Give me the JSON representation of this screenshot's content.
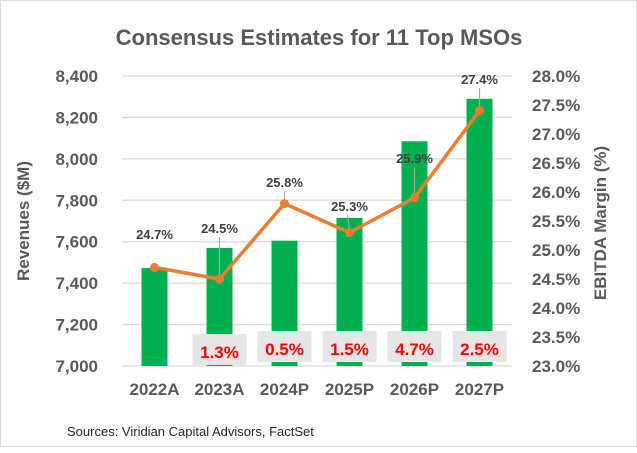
{
  "chart_data": {
    "type": "bar+line",
    "title": "Consensus Estimates for 11 Top MSOs",
    "categories": [
      "2022A",
      "2023A",
      "2024P",
      "2025P",
      "2026P",
      "2027P"
    ],
    "series": [
      {
        "name": "Revenues ($M)",
        "type": "bar",
        "axis": "left",
        "color": "#00B050",
        "values": [
          7473,
          7570,
          7605,
          7715,
          8085,
          8290
        ]
      },
      {
        "name": "EBITDA Margin (%)",
        "type": "line",
        "axis": "right",
        "color": "#ED7D31",
        "values": [
          24.7,
          24.5,
          25.8,
          25.3,
          25.9,
          27.4
        ],
        "labels": [
          "24.7%",
          "24.5%",
          "25.8%",
          "25.3%",
          "25.9%",
          "27.4%"
        ]
      }
    ],
    "growth_labels": [
      "",
      "1.3%",
      "0.5%",
      "1.5%",
      "4.7%",
      "2.5%"
    ],
    "growth_label_color": "#FF0000",
    "growth_label_bg": "#E7E6E6",
    "ylabel": "Revenues ($M)",
    "y2label": "EBITDA Margin (%)",
    "ylim": [
      7000,
      8400
    ],
    "y2lim": [
      23.0,
      28.0
    ],
    "yticks": [
      "7,000",
      "7,200",
      "7,400",
      "7,600",
      "7,800",
      "8,000",
      "8,200",
      "8,400"
    ],
    "y2ticks": [
      "23.0%",
      "23.5%",
      "24.0%",
      "24.5%",
      "25.0%",
      "25.5%",
      "26.0%",
      "26.5%",
      "27.0%",
      "27.5%",
      "28.0%"
    ],
    "grid": true,
    "legend": "none",
    "source": "Sources: Viridian Capital Advisors, FactSet"
  }
}
